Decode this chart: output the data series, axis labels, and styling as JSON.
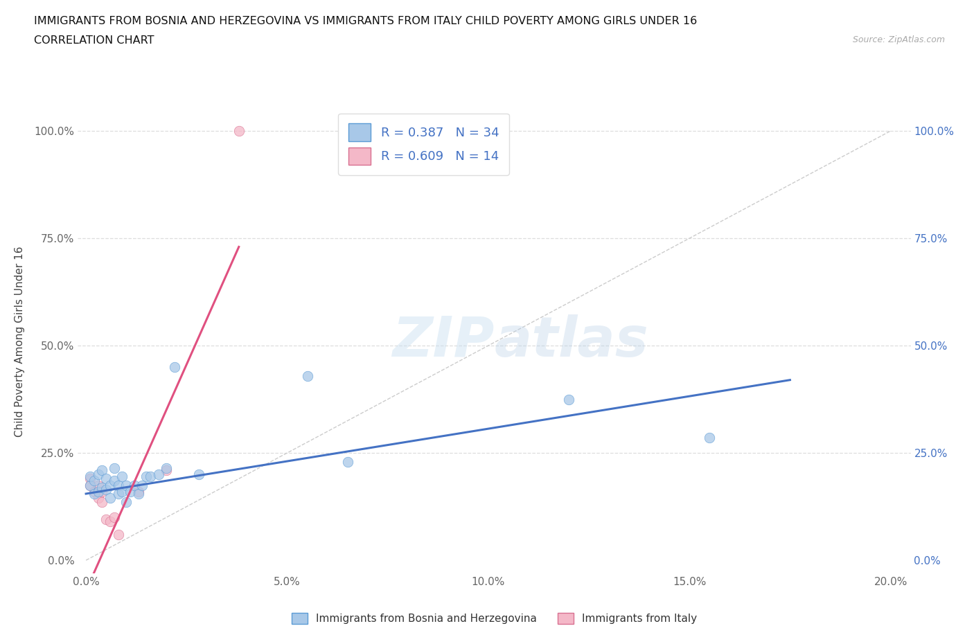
{
  "title_line1": "IMMIGRANTS FROM BOSNIA AND HERZEGOVINA VS IMMIGRANTS FROM ITALY CHILD POVERTY AMONG GIRLS UNDER 16",
  "title_line2": "CORRELATION CHART",
  "source_text": "Source: ZipAtlas.com",
  "xlabel_legend1": "Immigrants from Bosnia and Herzegovina",
  "xlabel_legend2": "Immigrants from Italy",
  "ylabel": "Child Poverty Among Girls Under 16",
  "xlim_min": -0.002,
  "xlim_max": 0.205,
  "ylim_min": -0.03,
  "ylim_max": 1.05,
  "xticks": [
    0.0,
    0.05,
    0.1,
    0.15,
    0.2
  ],
  "yticks": [
    0.0,
    0.25,
    0.5,
    0.75,
    1.0
  ],
  "xticklabels": [
    "0.0%",
    "5.0%",
    "10.0%",
    "15.0%",
    "20.0%"
  ],
  "yticklabels_left": [
    "0.0%",
    "25.0%",
    "50.0%",
    "75.0%",
    "100.0%"
  ],
  "yticklabels_right": [
    "0.0%",
    "25.0%",
    "50.0%",
    "75.0%",
    "100.0%"
  ],
  "color_bosnia": "#a8c8e8",
  "color_bosnia_edge": "#5b9bd5",
  "color_italy": "#f4b8c8",
  "color_italy_edge": "#d87090",
  "color_line_bosnia": "#4472c4",
  "color_line_italy": "#e05080",
  "color_diag": "#cccccc",
  "color_grid": "#dddddd",
  "watermark_color": "#ddeef8",
  "bosnia_x": [
    0.001,
    0.001,
    0.002,
    0.002,
    0.003,
    0.003,
    0.004,
    0.004,
    0.005,
    0.005,
    0.006,
    0.006,
    0.007,
    0.007,
    0.008,
    0.008,
    0.009,
    0.009,
    0.01,
    0.01,
    0.011,
    0.012,
    0.013,
    0.014,
    0.015,
    0.016,
    0.018,
    0.02,
    0.022,
    0.028,
    0.055,
    0.065,
    0.12,
    0.155
  ],
  "bosnia_y": [
    0.175,
    0.195,
    0.155,
    0.185,
    0.16,
    0.2,
    0.17,
    0.21,
    0.165,
    0.19,
    0.145,
    0.175,
    0.185,
    0.215,
    0.155,
    0.175,
    0.16,
    0.195,
    0.135,
    0.175,
    0.16,
    0.175,
    0.155,
    0.175,
    0.195,
    0.195,
    0.2,
    0.215,
    0.45,
    0.2,
    0.43,
    0.23,
    0.375,
    0.285
  ],
  "italy_x": [
    0.001,
    0.001,
    0.002,
    0.003,
    0.003,
    0.004,
    0.004,
    0.005,
    0.006,
    0.007,
    0.008,
    0.013,
    0.02,
    0.038
  ],
  "italy_y": [
    0.19,
    0.175,
    0.16,
    0.145,
    0.175,
    0.135,
    0.16,
    0.095,
    0.09,
    0.1,
    0.06,
    0.16,
    0.21,
    1.0
  ],
  "bosnia_trend_x": [
    0.0,
    0.175
  ],
  "bosnia_trend_y": [
    0.155,
    0.42
  ],
  "italy_trend_x": [
    0.001,
    0.038
  ],
  "italy_trend_y": [
    -0.05,
    0.73
  ]
}
